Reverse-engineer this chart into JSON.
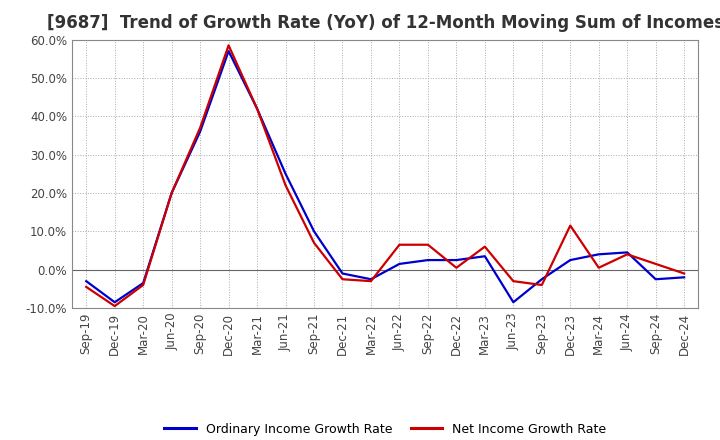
{
  "title": "[9687]  Trend of Growth Rate (YoY) of 12-Month Moving Sum of Incomes",
  "title_fontsize": 12,
  "labels": [
    "Sep-19",
    "Dec-19",
    "Mar-20",
    "Jun-20",
    "Sep-20",
    "Dec-20",
    "Mar-21",
    "Jun-21",
    "Sep-21",
    "Dec-21",
    "Mar-22",
    "Jun-22",
    "Sep-22",
    "Dec-22",
    "Mar-23",
    "Jun-23",
    "Sep-23",
    "Dec-23",
    "Mar-24",
    "Jun-24",
    "Sep-24",
    "Dec-24"
  ],
  "ordinary_income": [
    -0.03,
    -0.085,
    -0.035,
    0.2,
    0.36,
    0.57,
    0.42,
    0.25,
    0.1,
    -0.01,
    -0.025,
    0.015,
    0.025,
    0.025,
    0.035,
    -0.085,
    -0.025,
    0.025,
    0.04,
    0.045,
    -0.025,
    -0.02
  ],
  "net_income": [
    -0.045,
    -0.095,
    -0.04,
    0.2,
    0.37,
    0.585,
    0.42,
    0.22,
    0.07,
    -0.025,
    -0.03,
    0.065,
    0.065,
    0.005,
    0.06,
    -0.03,
    -0.04,
    0.115,
    0.005,
    0.04,
    0.015,
    -0.01
  ],
  "ordinary_color": "#0000cc",
  "net_color": "#cc0000",
  "line_width": 1.6,
  "ylim": [
    -0.1,
    0.6
  ],
  "yticks": [
    -0.1,
    0.0,
    0.1,
    0.2,
    0.3,
    0.4,
    0.5,
    0.6
  ],
  "background_color": "#ffffff",
  "grid_color": "#aaaaaa",
  "legend_ordinary": "Ordinary Income Growth Rate",
  "legend_net": "Net Income Growth Rate",
  "tick_fontsize": 8.5,
  "legend_fontsize": 9
}
